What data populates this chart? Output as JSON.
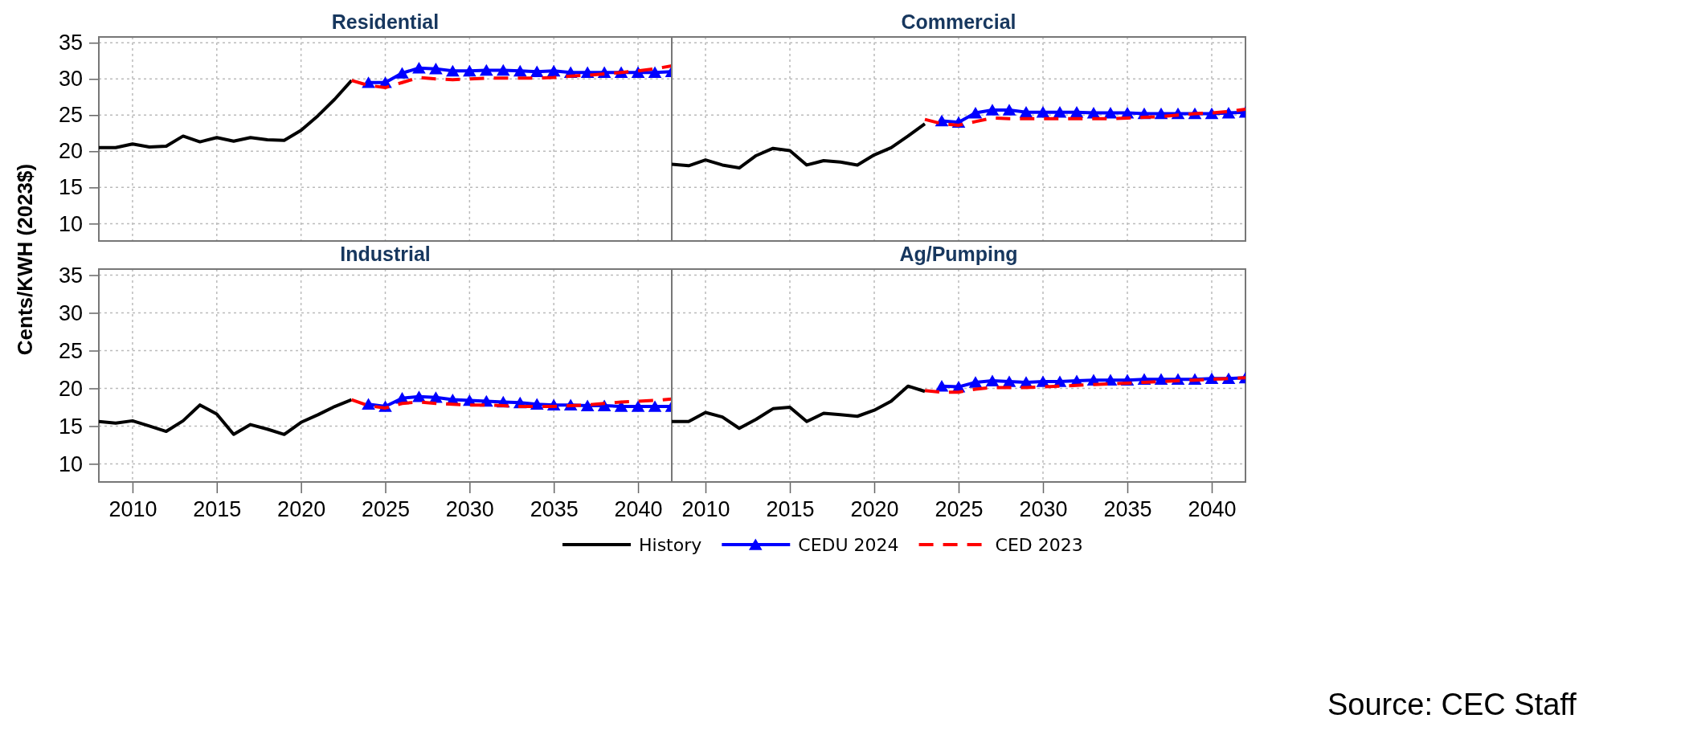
{
  "chart_data": [
    {
      "type": "line",
      "title": "Residential",
      "ylabel": "Cents/KWH (2023$)",
      "xlim": [
        2008,
        2042
      ],
      "ylim": [
        7.6,
        35.8
      ],
      "xticks": [
        2010,
        2015,
        2020,
        2025,
        2030,
        2035,
        2040
      ],
      "yticks": [
        10,
        15,
        20,
        25,
        30,
        35
      ],
      "grid": true,
      "legend": false,
      "tick_labels": "y",
      "series": [
        {
          "color": "#000000",
          "marker": "none",
          "line_style": "solid",
          "x": [
            2008,
            2009,
            2010,
            2011,
            2012,
            2013,
            2014,
            2015,
            2016,
            2017,
            2018,
            2019,
            2020,
            2021,
            2022,
            2023
          ],
          "values": [
            20.5,
            20.5,
            21.0,
            20.6,
            20.7,
            22.1,
            21.3,
            21.9,
            21.4,
            21.9,
            21.6,
            21.5,
            22.9,
            24.9,
            27.2,
            29.8
          ]
        },
        {
          "color": "#0000ff",
          "marker": "triangle",
          "line_style": "solid",
          "x": [
            2024,
            2025,
            2026,
            2027,
            2028,
            2029,
            2030,
            2031,
            2032,
            2033,
            2034,
            2035,
            2036,
            2037,
            2038,
            2039,
            2040,
            2041,
            2042
          ],
          "values": [
            29.5,
            29.5,
            30.8,
            31.5,
            31.4,
            31.1,
            31.1,
            31.2,
            31.2,
            31.1,
            31.0,
            31.1,
            30.9,
            30.9,
            30.9,
            30.9,
            30.9,
            30.9,
            31.0
          ]
        },
        {
          "color": "#ff0000",
          "marker": "none",
          "line_style": "dashed",
          "x": [
            2023,
            2024,
            2025,
            2026,
            2027,
            2028,
            2029,
            2030,
            2031,
            2032,
            2033,
            2034,
            2035,
            2036,
            2037,
            2038,
            2039,
            2040,
            2041,
            2042
          ],
          "values": [
            29.8,
            29.1,
            28.8,
            29.5,
            30.2,
            30.0,
            29.9,
            30.0,
            30.1,
            30.1,
            30.1,
            30.1,
            30.2,
            30.4,
            30.5,
            30.7,
            30.9,
            31.1,
            31.4,
            31.8
          ]
        }
      ]
    },
    {
      "type": "line",
      "title": "Commercial",
      "xlim": [
        2008,
        2042
      ],
      "ylim": [
        7.6,
        35.8
      ],
      "xticks": [
        2010,
        2015,
        2020,
        2025,
        2030,
        2035,
        2040
      ],
      "yticks": [
        10,
        15,
        20,
        25,
        30,
        35
      ],
      "grid": true,
      "legend": false,
      "tick_labels": false,
      "series": [
        {
          "color": "#000000",
          "marker": "none",
          "line_style": "solid",
          "x": [
            2008,
            2009,
            2010,
            2011,
            2012,
            2013,
            2014,
            2015,
            2016,
            2017,
            2018,
            2019,
            2020,
            2021,
            2022,
            2023
          ],
          "values": [
            18.2,
            18.0,
            18.8,
            18.1,
            17.7,
            19.4,
            20.4,
            20.1,
            18.1,
            18.7,
            18.5,
            18.1,
            19.5,
            20.5,
            22.1,
            23.8
          ]
        },
        {
          "color": "#0000ff",
          "marker": "triangle",
          "line_style": "solid",
          "x": [
            2024,
            2025,
            2026,
            2027,
            2028,
            2029,
            2030,
            2031,
            2032,
            2033,
            2034,
            2035,
            2036,
            2037,
            2038,
            2039,
            2040,
            2041,
            2042
          ],
          "values": [
            24.2,
            24.0,
            25.3,
            25.7,
            25.7,
            25.4,
            25.4,
            25.4,
            25.4,
            25.3,
            25.3,
            25.3,
            25.2,
            25.2,
            25.2,
            25.2,
            25.2,
            25.3,
            25.4
          ]
        },
        {
          "color": "#ff0000",
          "marker": "none",
          "line_style": "dashed",
          "x": [
            2023,
            2024,
            2025,
            2026,
            2027,
            2028,
            2029,
            2030,
            2031,
            2032,
            2033,
            2034,
            2035,
            2036,
            2037,
            2038,
            2039,
            2040,
            2041,
            2042
          ],
          "values": [
            24.4,
            23.8,
            23.6,
            24.1,
            24.6,
            24.5,
            24.5,
            24.5,
            24.5,
            24.5,
            24.5,
            24.5,
            24.6,
            24.7,
            24.8,
            25.0,
            25.2,
            25.3,
            25.5,
            25.8
          ]
        }
      ]
    },
    {
      "type": "line",
      "title": "Industrial",
      "xlim": [
        2008,
        2042
      ],
      "ylim": [
        7.6,
        35.8
      ],
      "xticks": [
        2010,
        2015,
        2020,
        2025,
        2030,
        2035,
        2040
      ],
      "yticks": [
        10,
        15,
        20,
        25,
        30,
        35
      ],
      "grid": true,
      "legend": "bottom",
      "series": [
        {
          "name": "History",
          "color": "#000000",
          "marker": "none",
          "line_style": "solid",
          "x": [
            2008,
            2009,
            2010,
            2011,
            2012,
            2013,
            2014,
            2015,
            2016,
            2017,
            2018,
            2019,
            2020,
            2021,
            2022,
            2023
          ],
          "values": [
            15.6,
            15.4,
            15.7,
            15.0,
            14.3,
            15.7,
            17.8,
            16.6,
            13.9,
            15.2,
            14.6,
            13.9,
            15.5,
            16.5,
            17.6,
            18.5
          ]
        },
        {
          "name": "CEDU 2024",
          "color": "#0000ff",
          "marker": "triangle",
          "line_style": "solid",
          "x": [
            2024,
            2025,
            2026,
            2027,
            2028,
            2029,
            2030,
            2031,
            2032,
            2033,
            2034,
            2035,
            2036,
            2037,
            2038,
            2039,
            2040,
            2041,
            2042
          ],
          "values": [
            17.9,
            17.6,
            18.7,
            18.9,
            18.8,
            18.5,
            18.4,
            18.3,
            18.2,
            18.1,
            17.9,
            17.8,
            17.8,
            17.7,
            17.7,
            17.6,
            17.6,
            17.6,
            17.6
          ]
        },
        {
          "name": "CED 2023",
          "color": "#ff0000",
          "marker": "none",
          "line_style": "dashed",
          "x": [
            2023,
            2024,
            2025,
            2026,
            2027,
            2028,
            2029,
            2030,
            2031,
            2032,
            2033,
            2034,
            2035,
            2036,
            2037,
            2038,
            2039,
            2040,
            2041,
            2042
          ],
          "values": [
            18.5,
            17.7,
            17.4,
            18.0,
            18.2,
            18.0,
            17.9,
            17.8,
            17.8,
            17.7,
            17.6,
            17.6,
            17.6,
            17.7,
            17.8,
            18.0,
            18.2,
            18.3,
            18.4,
            18.6
          ]
        }
      ]
    },
    {
      "type": "line",
      "title": "Ag/Pumping",
      "xlim": [
        2008,
        2042
      ],
      "ylim": [
        7.6,
        35.8
      ],
      "xticks": [
        2010,
        2015,
        2020,
        2025,
        2030,
        2035,
        2040
      ],
      "yticks": [
        10,
        15,
        20,
        25,
        30,
        35
      ],
      "grid": true,
      "legend": false,
      "tick_labels": "x",
      "annotations": [
        "Source: CEC Staff"
      ],
      "series": [
        {
          "color": "#000000",
          "marker": "none",
          "line_style": "solid",
          "x": [
            2008,
            2009,
            2010,
            2011,
            2012,
            2013,
            2014,
            2015,
            2016,
            2017,
            2018,
            2019,
            2020,
            2021,
            2022,
            2023
          ],
          "values": [
            15.6,
            15.6,
            16.8,
            16.2,
            14.7,
            15.9,
            17.3,
            17.5,
            15.6,
            16.7,
            16.5,
            16.3,
            17.1,
            18.3,
            20.3,
            19.6
          ]
        },
        {
          "color": "#0000ff",
          "marker": "triangle",
          "line_style": "solid",
          "x": [
            2024,
            2025,
            2026,
            2027,
            2028,
            2029,
            2030,
            2031,
            2032,
            2033,
            2034,
            2035,
            2036,
            2037,
            2038,
            2039,
            2040,
            2041,
            2042
          ],
          "values": [
            20.3,
            20.2,
            20.8,
            21.0,
            20.9,
            20.8,
            20.9,
            20.9,
            21.0,
            21.1,
            21.1,
            21.1,
            21.2,
            21.2,
            21.2,
            21.2,
            21.3,
            21.3,
            21.4
          ]
        },
        {
          "color": "#ff0000",
          "marker": "none",
          "line_style": "dashed",
          "x": [
            2023,
            2024,
            2025,
            2026,
            2027,
            2028,
            2029,
            2030,
            2031,
            2032,
            2033,
            2034,
            2035,
            2036,
            2037,
            2038,
            2039,
            2040,
            2041,
            2042
          ],
          "values": [
            19.7,
            19.5,
            19.5,
            19.9,
            20.1,
            20.1,
            20.1,
            20.2,
            20.3,
            20.4,
            20.5,
            20.6,
            20.7,
            20.8,
            20.9,
            21.0,
            21.1,
            21.2,
            21.3,
            21.4
          ]
        }
      ]
    }
  ]
}
